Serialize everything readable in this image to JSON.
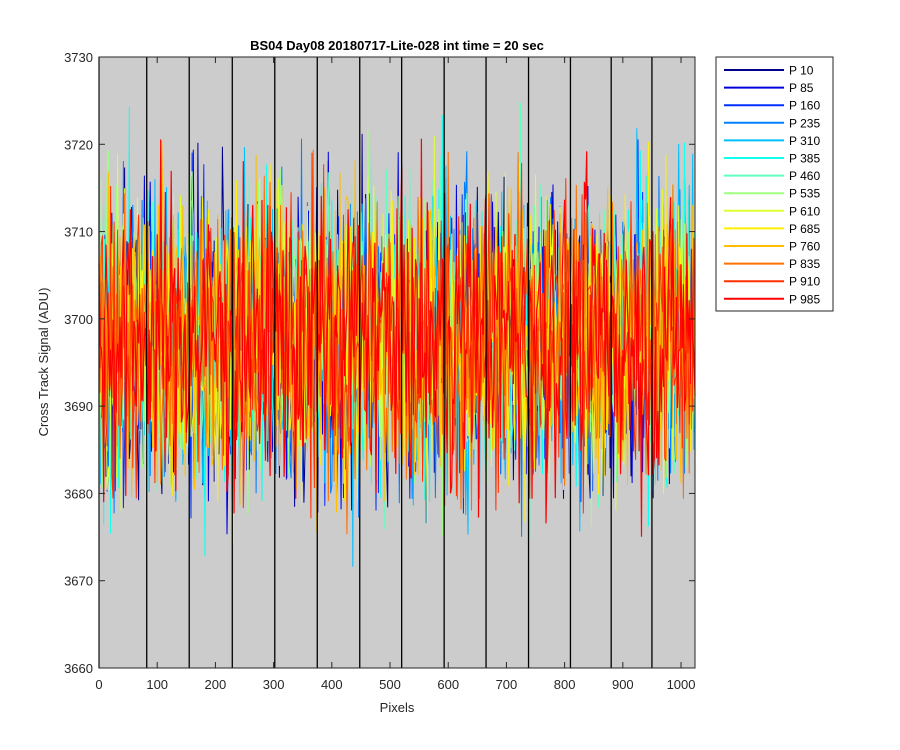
{
  "chart_data": {
    "type": "line",
    "title": "BS04 Day08 20180717-Lite-028 int time = 20 sec",
    "xlabel": "Pixels",
    "ylabel": "Cross Track Signal (ADU)",
    "xlim": [
      0,
      1024
    ],
    "ylim": [
      3660,
      3730
    ],
    "x_ticks": [
      0,
      100,
      200,
      300,
      400,
      500,
      600,
      700,
      800,
      900,
      1000
    ],
    "y_ticks": [
      3660,
      3670,
      3680,
      3690,
      3700,
      3710,
      3720,
      3730
    ],
    "background_color": "#cccccc",
    "grid": false,
    "legend_position": "outside-top-right",
    "vertical_markers": [
      {
        "x": 0,
        "color": "#000000"
      },
      {
        "x": 82,
        "color": "#000000"
      },
      {
        "x": 155,
        "color": "#000000"
      },
      {
        "x": 229,
        "color": "#000000"
      },
      {
        "x": 302,
        "color": "#000000"
      },
      {
        "x": 375,
        "color": "#000000"
      },
      {
        "x": 448,
        "color": "#000000"
      },
      {
        "x": 520,
        "color": "#000000"
      },
      {
        "x": 593,
        "color": "#000000"
      },
      {
        "x": 665,
        "color": "#000000"
      },
      {
        "x": 738,
        "color": "#000000"
      },
      {
        "x": 810,
        "color": "#000000"
      },
      {
        "x": 880,
        "color": "#000000"
      },
      {
        "x": 950,
        "color": "#000000"
      }
    ],
    "series_shape": {
      "x_start": 0,
      "x_end": 1024,
      "x_step": 2,
      "mean": 3698,
      "typical_range": [
        3680,
        3718
      ],
      "extreme_range": [
        3666,
        3730
      ]
    },
    "series": [
      {
        "name": "P 10",
        "color": "#00008f"
      },
      {
        "name": "P 85",
        "color": "#0000df"
      },
      {
        "name": "P 160",
        "color": "#0030ff"
      },
      {
        "name": "P 235",
        "color": "#0080ff"
      },
      {
        "name": "P 310",
        "color": "#00bfff"
      },
      {
        "name": "P 385",
        "color": "#10ffef"
      },
      {
        "name": "P 460",
        "color": "#60ffbf"
      },
      {
        "name": "P 535",
        "color": "#9fff80"
      },
      {
        "name": "P 610",
        "color": "#dfff30"
      },
      {
        "name": "P 685",
        "color": "#ffef00"
      },
      {
        "name": "P 760",
        "color": "#ffbf00"
      },
      {
        "name": "P 835",
        "color": "#ff7000"
      },
      {
        "name": "P 910",
        "color": "#ff3000"
      },
      {
        "name": "P 985",
        "color": "#ff0000"
      }
    ]
  }
}
